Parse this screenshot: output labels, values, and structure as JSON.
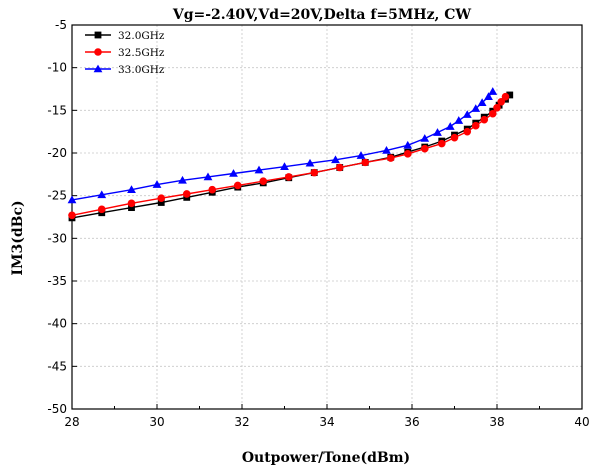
{
  "chart_data": {
    "type": "line",
    "title": "Vg=-2.40V,Vd=20V,Delta f=5MHz, CW",
    "xlabel": "Outpower/Tone(dBm)",
    "ylabel": "IM3(dBc)",
    "xlim": [
      28,
      40
    ],
    "ylim": [
      -50,
      -5
    ],
    "xticks": [
      28,
      30,
      32,
      34,
      36,
      38,
      40
    ],
    "yticks": [
      -50,
      -45,
      -40,
      -35,
      -30,
      -25,
      -20,
      -15,
      -10,
      -5
    ],
    "grid": true,
    "legend_position": "top-left",
    "series": [
      {
        "name": "32.0GHz",
        "color": "#000000",
        "marker": "square",
        "x": [
          28.0,
          28.7,
          29.4,
          30.1,
          30.7,
          31.3,
          31.9,
          32.5,
          33.1,
          33.7,
          34.3,
          34.9,
          35.5,
          35.9,
          36.3,
          36.7,
          37.0,
          37.3,
          37.5,
          37.7,
          37.9,
          38.05,
          38.2,
          38.3
        ],
        "y": [
          -27.6,
          -27.0,
          -26.4,
          -25.8,
          -25.2,
          -24.6,
          -24.0,
          -23.5,
          -22.9,
          -22.3,
          -21.7,
          -21.1,
          -20.5,
          -19.9,
          -19.3,
          -18.6,
          -17.9,
          -17.2,
          -16.5,
          -15.8,
          -15.1,
          -14.4,
          -13.7,
          -13.2
        ]
      },
      {
        "name": "32.5GHz",
        "color": "#ff0000",
        "marker": "circle",
        "x": [
          28.0,
          28.7,
          29.4,
          30.1,
          30.7,
          31.3,
          31.9,
          32.5,
          33.1,
          33.7,
          34.3,
          34.9,
          35.5,
          35.9,
          36.3,
          36.7,
          37.0,
          37.3,
          37.5,
          37.7,
          37.9,
          38.0,
          38.1,
          38.2
        ],
        "y": [
          -27.3,
          -26.6,
          -25.9,
          -25.3,
          -24.8,
          -24.3,
          -23.8,
          -23.3,
          -22.8,
          -22.3,
          -21.7,
          -21.1,
          -20.6,
          -20.1,
          -19.5,
          -18.9,
          -18.2,
          -17.5,
          -16.8,
          -16.1,
          -15.4,
          -14.7,
          -14.0,
          -13.4
        ]
      },
      {
        "name": "33.0GHz",
        "color": "#0000ff",
        "marker": "triangle",
        "x": [
          28.0,
          28.7,
          29.4,
          30.0,
          30.6,
          31.2,
          31.8,
          32.4,
          33.0,
          33.6,
          34.2,
          34.8,
          35.4,
          35.9,
          36.3,
          36.6,
          36.9,
          37.1,
          37.3,
          37.5,
          37.65,
          37.8,
          37.9
        ],
        "y": [
          -25.5,
          -24.9,
          -24.3,
          -23.7,
          -23.2,
          -22.8,
          -22.4,
          -22.0,
          -21.6,
          -21.2,
          -20.8,
          -20.3,
          -19.7,
          -19.1,
          -18.3,
          -17.6,
          -16.9,
          -16.2,
          -15.5,
          -14.8,
          -14.1,
          -13.4,
          -12.8
        ]
      }
    ]
  }
}
